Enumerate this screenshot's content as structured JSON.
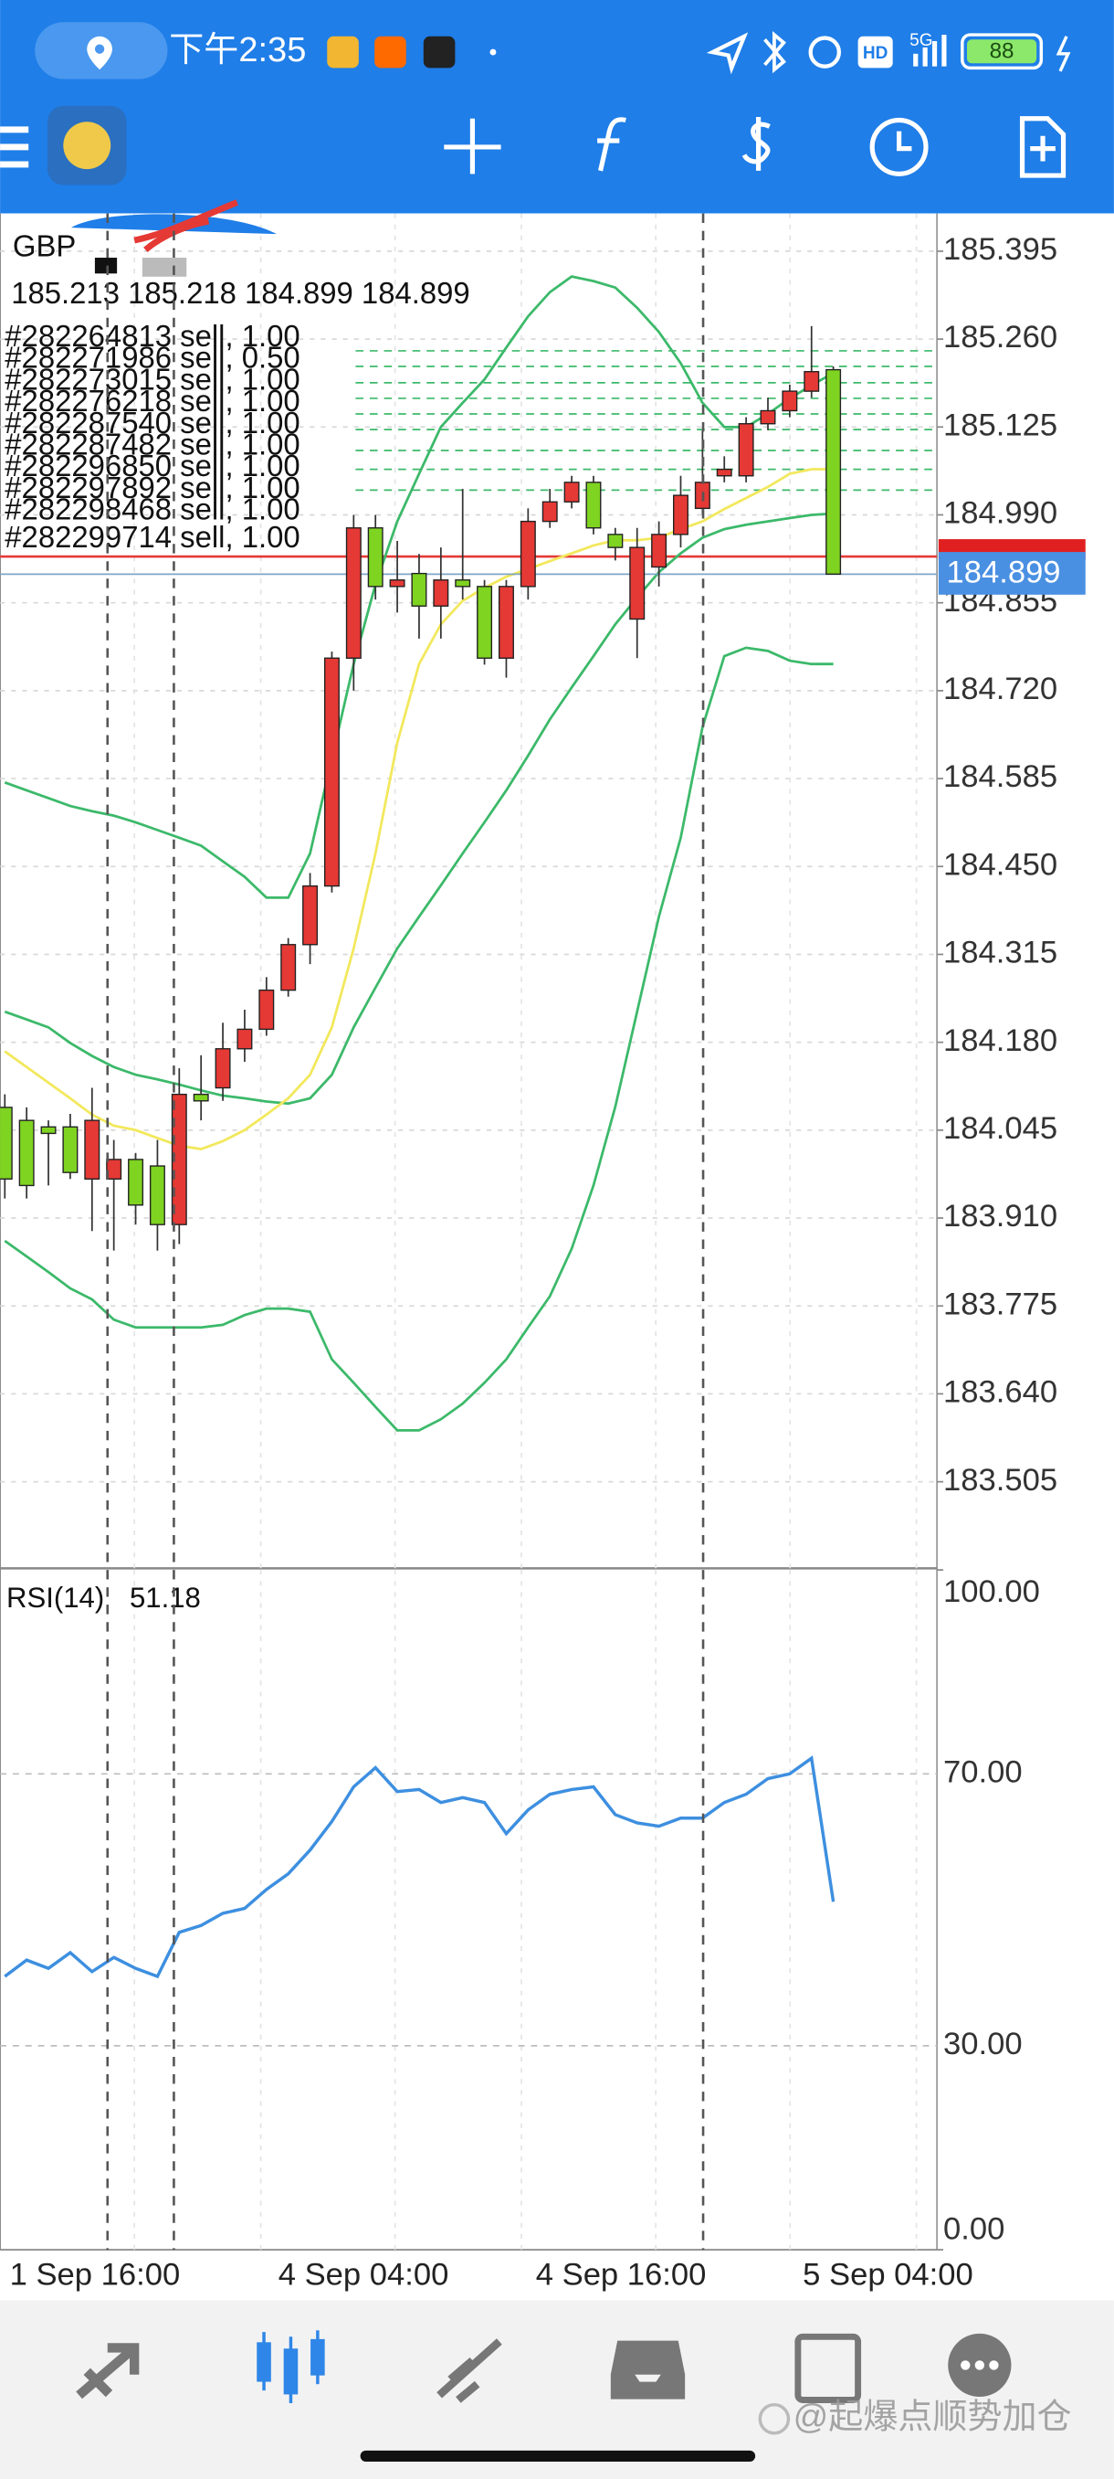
{
  "status_bar": {
    "time": "下午2:35",
    "network": "5G",
    "hd": "HD",
    "battery": "88"
  },
  "chart_data": {
    "type": "candlestick",
    "symbol": "GBP",
    "ohlc_line": "185.213 185.218 184.899 184.899",
    "up_color": "#e53935",
    "down_color": "#7fd321",
    "grid": true,
    "open": [
      184.08,
      184.06,
      184.05,
      184.05,
      183.97,
      183.97,
      184.0,
      183.99,
      183.9,
      184.1,
      184.11,
      184.17,
      184.2,
      184.26,
      184.33,
      184.42,
      184.77,
      184.97,
      184.88,
      184.9,
      184.85,
      184.89,
      184.88,
      184.77,
      184.88,
      184.98,
      185.01,
      185.04,
      184.96,
      184.83,
      184.91,
      184.96,
      185.0,
      185.05,
      185.05,
      185.13,
      185.15,
      185.18,
      185.213
    ],
    "high": [
      184.1,
      184.08,
      184.06,
      184.07,
      184.11,
      184.03,
      184.01,
      184.03,
      184.14,
      184.16,
      184.21,
      184.23,
      184.28,
      184.34,
      184.44,
      184.78,
      184.99,
      184.99,
      184.95,
      184.93,
      184.94,
      185.03,
      184.89,
      184.89,
      185.0,
      185.03,
      185.05,
      185.05,
      184.97,
      184.97,
      184.98,
      185.05,
      185.12,
      185.08,
      185.14,
      185.17,
      185.19,
      185.28,
      185.218
    ],
    "low": [
      183.94,
      183.94,
      183.96,
      183.97,
      183.89,
      183.86,
      183.9,
      183.86,
      183.87,
      184.06,
      184.09,
      184.15,
      184.19,
      184.25,
      184.3,
      184.41,
      184.72,
      184.86,
      184.84,
      184.8,
      184.8,
      184.86,
      184.76,
      184.74,
      184.86,
      184.97,
      185.0,
      184.96,
      184.92,
      184.77,
      184.88,
      184.94,
      184.99,
      185.04,
      185.04,
      185.12,
      185.14,
      185.17,
      184.899
    ],
    "close": [
      183.97,
      183.96,
      184.04,
      183.98,
      184.06,
      184.0,
      183.93,
      183.9,
      184.1,
      184.09,
      184.17,
      184.2,
      184.26,
      184.33,
      184.42,
      184.77,
      184.97,
      184.88,
      184.89,
      184.85,
      184.89,
      184.88,
      184.77,
      184.88,
      184.98,
      185.01,
      185.04,
      184.97,
      184.94,
      184.94,
      184.96,
      185.02,
      185.04,
      185.06,
      185.13,
      185.15,
      185.18,
      185.21,
      184.899
    ],
    "overlays": [
      {
        "color": "#3cb96a",
        "values": [
          184.579,
          184.567,
          184.555,
          184.543,
          184.535,
          184.528,
          184.518,
          184.506,
          184.494,
          184.482,
          184.458,
          184.434,
          184.402,
          184.402,
          184.47,
          184.616,
          184.761,
          184.883,
          184.98,
          185.053,
          185.125,
          185.162,
          185.198,
          185.247,
          185.295,
          185.332,
          185.356,
          185.349,
          185.339,
          185.308,
          185.271,
          185.223,
          185.162,
          185.125,
          185.125,
          185.145,
          185.169,
          185.189,
          185.208
        ]
      },
      {
        "color": "#3cb96a",
        "values": [
          184.227,
          184.215,
          184.203,
          184.179,
          184.159,
          184.142,
          184.13,
          184.123,
          184.115,
          184.106,
          184.098,
          184.094,
          184.089,
          184.086,
          184.094,
          184.13,
          184.203,
          184.264,
          184.324,
          184.373,
          184.421,
          184.47,
          184.518,
          184.567,
          184.62,
          184.676,
          184.725,
          184.773,
          184.822,
          184.863,
          184.902,
          184.931,
          184.955,
          184.968,
          184.975,
          184.98,
          184.985,
          184.99,
          184.992
        ]
      },
      {
        "color": "#3cb96a",
        "values": [
          183.875,
          183.851,
          183.827,
          183.802,
          183.785,
          183.754,
          183.742,
          183.742,
          183.742,
          183.742,
          183.746,
          183.761,
          183.771,
          183.771,
          183.766,
          183.693,
          183.657,
          183.62,
          183.584,
          183.584,
          183.601,
          183.625,
          183.657,
          183.693,
          183.742,
          183.79,
          183.863,
          183.96,
          184.081,
          184.227,
          184.373,
          184.494,
          184.664,
          184.773,
          184.786,
          184.781,
          184.766,
          184.761,
          184.761
        ]
      },
      {
        "color": "#f2e85c",
        "values": [
          184.166,
          184.142,
          184.118,
          184.094,
          184.069,
          184.052,
          184.045,
          184.033,
          184.021,
          184.016,
          184.028,
          184.045,
          184.069,
          184.094,
          184.13,
          184.203,
          184.324,
          184.47,
          184.64,
          184.761,
          184.822,
          184.858,
          184.878,
          184.895,
          184.907,
          184.919,
          184.931,
          184.943,
          184.951,
          184.951,
          184.955,
          184.968,
          184.98,
          184.999,
          185.016,
          185.033,
          185.053,
          185.06,
          185.06
        ]
      }
    ],
    "ylim": [
      183.372,
      185.453
    ],
    "yticks": [
      {
        "value": 185.395,
        "label": "185.395"
      },
      {
        "value": 185.26,
        "label": "185.260"
      },
      {
        "value": 185.125,
        "label": "185.125"
      },
      {
        "value": 184.99,
        "label": "184.990"
      },
      {
        "value": 184.855,
        "label": "184.855"
      },
      {
        "value": 184.72,
        "label": "184.720"
      },
      {
        "value": 184.585,
        "label": "184.585"
      },
      {
        "value": 184.45,
        "label": "184.450"
      },
      {
        "value": 184.315,
        "label": "184.315"
      },
      {
        "value": 184.18,
        "label": "184.180"
      },
      {
        "value": 184.045,
        "label": "184.045"
      },
      {
        "value": 183.91,
        "label": "183.910"
      },
      {
        "value": 183.775,
        "label": "183.775"
      },
      {
        "value": 183.64,
        "label": "183.640"
      },
      {
        "value": 183.505,
        "label": "183.505"
      }
    ],
    "current_price": {
      "value": 184.899,
      "label": "184.899",
      "color": "#4a90e2"
    },
    "orders": [
      {
        "label": "#282264813 sell, 1.00",
        "price": 185.242
      },
      {
        "label": "#282271986 sell, 0.50",
        "price": 185.218
      },
      {
        "label": "#282273015 sell, 1.00",
        "price": 185.193
      },
      {
        "label": "#282276218 sell, 1.00",
        "price": 185.169
      },
      {
        "label": "#282287540 sell, 1.00",
        "price": 185.145
      },
      {
        "label": "#282287482 sell, 1.00",
        "price": 185.121
      },
      {
        "label": "#282296850 sell, 1.00",
        "price": 185.089
      },
      {
        "label": "#282297892 sell, 1.00",
        "price": 185.06
      },
      {
        "label": "#282298468 sell, 1.00",
        "price": 185.028
      },
      {
        "label": "#282299714 sell, 1.00",
        "price": 184.926
      }
    ],
    "x_labels": [
      "1 Sep 16:00",
      "4 Sep 04:00",
      "4 Sep 16:00",
      "5 Sep 04:00"
    ],
    "rsi": {
      "name": "RSI(14)",
      "color": "#3d8fe0",
      "values": [
        40.2,
        42.6,
        41.4,
        43.7,
        40.9,
        43.0,
        41.4,
        40.2,
        46.7,
        47.7,
        49.5,
        50.2,
        53.0,
        55.3,
        58.8,
        63.0,
        68.1,
        70.9,
        67.4,
        67.7,
        65.8,
        66.5,
        65.8,
        61.2,
        64.7,
        67.0,
        67.7,
        68.1,
        64.0,
        62.8,
        62.3,
        63.5,
        63.5,
        65.8,
        67.0,
        69.3,
        70.0,
        72.3,
        51.18
      ],
      "ylim": [
        0,
        100
      ],
      "yticks": [
        {
          "value": 100,
          "label": "100.00"
        },
        {
          "value": 70,
          "label": "70.00"
        },
        {
          "value": 30,
          "label": "30.00"
        },
        {
          "value": 0,
          "label": "0.00"
        }
      ]
    }
  },
  "watermark": "@起爆点顺势加仓"
}
